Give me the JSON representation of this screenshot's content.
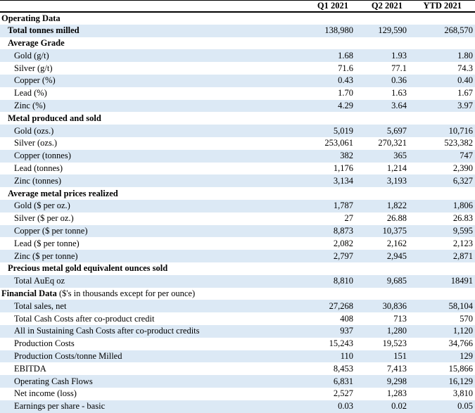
{
  "table": {
    "shade_color": "#dce9f5",
    "border_color": "#000000",
    "text_color": "#000000",
    "columns": [
      "Q1 2021",
      "Q2 2021",
      "YTD 2021"
    ],
    "rows": [
      {
        "label": "Operating Data",
        "indent": 0,
        "bold": true,
        "values": [
          "",
          "",
          ""
        ]
      },
      {
        "label": "Total tonnes milled",
        "indent": 1,
        "bold": true,
        "values": [
          "138,980",
          "129,590",
          "268,570"
        ]
      },
      {
        "label": "Average Grade",
        "indent": 1,
        "bold": true,
        "values": [
          "",
          "",
          ""
        ]
      },
      {
        "label": "Gold (g/t)",
        "indent": 2,
        "bold": false,
        "values": [
          "1.68",
          "1.93",
          "1.80"
        ]
      },
      {
        "label": "Silver (g/t)",
        "indent": 2,
        "bold": false,
        "values": [
          "71.6",
          "77.1",
          "74.3"
        ]
      },
      {
        "label": "Copper (%)",
        "indent": 2,
        "bold": false,
        "values": [
          "0.43",
          "0.36",
          "0.40"
        ]
      },
      {
        "label": "Lead (%)",
        "indent": 2,
        "bold": false,
        "values": [
          "1.70",
          "1.63",
          "1.67"
        ]
      },
      {
        "label": "Zinc (%)",
        "indent": 2,
        "bold": false,
        "values": [
          "4.29",
          "3.64",
          "3.97"
        ]
      },
      {
        "label": "Metal produced and sold",
        "indent": 1,
        "bold": true,
        "values": [
          "",
          "",
          ""
        ]
      },
      {
        "label": "Gold (ozs.)",
        "indent": 2,
        "bold": false,
        "values": [
          "5,019",
          "5,697",
          "10,716"
        ]
      },
      {
        "label": "Silver (ozs.)",
        "indent": 2,
        "bold": false,
        "values": [
          "253,061",
          "270,321",
          "523,382"
        ]
      },
      {
        "label": "Copper (tonnes)",
        "indent": 2,
        "bold": false,
        "values": [
          "382",
          "365",
          "747"
        ]
      },
      {
        "label": "Lead (tonnes)",
        "indent": 2,
        "bold": false,
        "values": [
          "1,176",
          "1,214",
          "2,390"
        ]
      },
      {
        "label": "Zinc (tonnes)",
        "indent": 2,
        "bold": false,
        "values": [
          "3,134",
          "3,193",
          "6,327"
        ]
      },
      {
        "label": "Average metal prices realized",
        "indent": 1,
        "bold": true,
        "values": [
          "",
          "",
          ""
        ]
      },
      {
        "label": "Gold ($ per oz.)",
        "indent": 2,
        "bold": false,
        "values": [
          "1,787",
          "1,822",
          "1,806"
        ]
      },
      {
        "label": "Silver ($ per oz.)",
        "indent": 2,
        "bold": false,
        "values": [
          "27",
          "26.88",
          "26.83"
        ]
      },
      {
        "label": "Copper ($ per tonne)",
        "indent": 2,
        "bold": false,
        "values": [
          "8,873",
          "10,375",
          "9,595"
        ]
      },
      {
        "label": "Lead ($ per tonne)",
        "indent": 2,
        "bold": false,
        "values": [
          "2,082",
          "2,162",
          "2,123"
        ]
      },
      {
        "label": "Zinc ($ per tonne)",
        "indent": 2,
        "bold": false,
        "values": [
          "2,797",
          "2,945",
          "2,871"
        ]
      },
      {
        "label": "Precious metal gold equivalent ounces sold",
        "indent": 1,
        "bold": true,
        "values": [
          "",
          "",
          ""
        ]
      },
      {
        "label": "Total AuEq oz",
        "indent": 2,
        "bold": false,
        "values": [
          "8,810",
          "9,685",
          "18491"
        ]
      },
      {
        "label": "Financial Data",
        "note": " ($'s in thousands except for per ounce)",
        "indent": 0,
        "bold": true,
        "values": [
          "",
          "",
          ""
        ]
      },
      {
        "label": "Total sales, net",
        "indent": 2,
        "bold": false,
        "values": [
          "27,268",
          "30,836",
          "58,104"
        ]
      },
      {
        "label": "Total Cash Costs after co-product credit",
        "indent": 2,
        "bold": false,
        "values": [
          "408",
          "713",
          "570"
        ]
      },
      {
        "label": "All in Sustaining Cash Costs after co-product credits",
        "indent": 2,
        "bold": false,
        "values": [
          "937",
          "1,280",
          "1,120"
        ]
      },
      {
        "label": "Production Costs",
        "indent": 2,
        "bold": false,
        "values": [
          "15,243",
          "19,523",
          "34,766"
        ]
      },
      {
        "label": "Production Costs/tonne Milled",
        "indent": 2,
        "bold": false,
        "values": [
          "110",
          "151",
          "129"
        ]
      },
      {
        "label": "EBITDA",
        "indent": 2,
        "bold": false,
        "values": [
          "8,453",
          "7,413",
          "15,866"
        ]
      },
      {
        "label": "Operating Cash Flows",
        "indent": 2,
        "bold": false,
        "values": [
          "6,831",
          "9,298",
          "16,129"
        ]
      },
      {
        "label": "Net income (loss)",
        "indent": 2,
        "bold": false,
        "values": [
          "2,527",
          "1,283",
          "3,810"
        ]
      },
      {
        "label": "Earnings per share - basic",
        "indent": 2,
        "bold": false,
        "values": [
          "0.03",
          "0.02",
          "0.05"
        ]
      }
    ]
  }
}
